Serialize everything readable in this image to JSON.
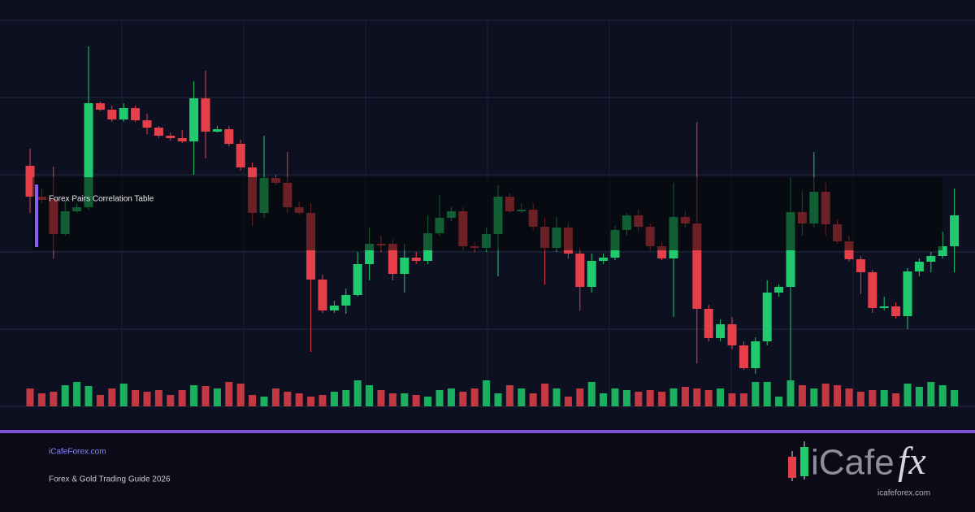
{
  "chart_data": {
    "type": "candlestick",
    "up_color": "#1fcb6c",
    "down_color": "#e5404a",
    "ylim": [
      0,
      475
    ],
    "yticks": [
      0,
      95,
      190,
      285,
      380,
      475
    ],
    "grid": true,
    "volume_lim": [
      0,
      40
    ],
    "open": [
      296,
      258,
      255,
      212,
      240,
      245,
      373,
      365,
      353,
      367,
      352,
      343,
      333,
      330,
      326,
      379,
      338,
      341,
      323,
      294,
      238,
      281,
      275,
      245,
      238,
      156,
      118,
      124,
      137,
      175,
      200,
      200,
      163,
      183,
      179,
      213,
      232,
      240,
      197,
      195,
      212,
      258,
      240,
      242,
      221,
      195,
      220,
      188,
      147,
      179,
      183,
      217,
      235,
      221,
      197,
      182,
      233,
      225,
      120,
      84,
      101,
      75,
      47,
      80,
      140,
      147,
      239,
      225,
      264,
      224,
      203,
      181,
      165,
      121,
      123,
      111,
      166,
      178,
      185,
      197
    ],
    "high": [
      317,
      268,
      295,
      253,
      250,
      443,
      375,
      370,
      373,
      370,
      360,
      345,
      337,
      340,
      400,
      413,
      345,
      345,
      328,
      300,
      333,
      285,
      313,
      252,
      250,
      162,
      130,
      145,
      190,
      220,
      210,
      205,
      200,
      190,
      235,
      260,
      245,
      245,
      202,
      220,
      272,
      262,
      250,
      250,
      232,
      233,
      225,
      195,
      188,
      188,
      222,
      238,
      242,
      225,
      202,
      275,
      240,
      350,
      125,
      107,
      110,
      80,
      85,
      155,
      150,
      282,
      265,
      313,
      275,
      230,
      210,
      185,
      168,
      135,
      128,
      170,
      182,
      190,
      215,
      268
    ],
    "low": [
      238,
      250,
      182,
      210,
      238,
      242,
      363,
      350,
      350,
      350,
      335,
      330,
      327,
      324,
      285,
      305,
      337,
      320,
      290,
      222,
      232,
      272,
      238,
      235,
      67,
      115,
      115,
      114,
      135,
      155,
      190,
      155,
      140,
      175,
      175,
      210,
      228,
      192,
      190,
      190,
      160,
      238,
      238,
      217,
      150,
      190,
      182,
      118,
      140,
      175,
      180,
      210,
      215,
      192,
      180,
      110,
      220,
      53,
      80,
      80,
      70,
      45,
      40,
      75,
      135,
      32,
      210,
      220,
      210,
      200,
      178,
      138,
      115,
      118,
      108,
      95,
      160,
      165,
      182,
      165
    ],
    "close": [
      258,
      254,
      212,
      240,
      245,
      373,
      365,
      353,
      367,
      352,
      343,
      333,
      330,
      326,
      379,
      338,
      341,
      323,
      294,
      238,
      281,
      275,
      245,
      238,
      156,
      118,
      124,
      137,
      175,
      200,
      199,
      163,
      183,
      179,
      213,
      232,
      240,
      197,
      195,
      212,
      258,
      240,
      242,
      221,
      195,
      220,
      188,
      147,
      179,
      183,
      217,
      235,
      221,
      197,
      182,
      233,
      225,
      120,
      84,
      101,
      75,
      47,
      80,
      140,
      147,
      239,
      225,
      264,
      224,
      203,
      181,
      165,
      121,
      123,
      111,
      166,
      178,
      185,
      197,
      235
    ],
    "volume": [
      22,
      16,
      18,
      26,
      30,
      25,
      14,
      22,
      28,
      20,
      18,
      20,
      14,
      20,
      26,
      25,
      22,
      30,
      28,
      14,
      12,
      22,
      18,
      16,
      12,
      14,
      18,
      20,
      32,
      26,
      20,
      16,
      16,
      14,
      12,
      20,
      22,
      18,
      22,
      32,
      16,
      26,
      22,
      16,
      28,
      22,
      12,
      22,
      30,
      16,
      22,
      20,
      18,
      20,
      18,
      22,
      24,
      22,
      20,
      22,
      16,
      16,
      30,
      30,
      12,
      32,
      26,
      22,
      28,
      26,
      22,
      18,
      20,
      20,
      16,
      28,
      24,
      30,
      26,
      20
    ]
  },
  "overlay": {
    "label": "Forex Pairs Correlation Table"
  },
  "footer": {
    "site": "iCafeForex.com",
    "subtitle": "Forex & Gold Trading Guide 2026",
    "logo_main": "iCafe",
    "logo_fx": "fx",
    "logo_url": "icafeforex.com"
  }
}
